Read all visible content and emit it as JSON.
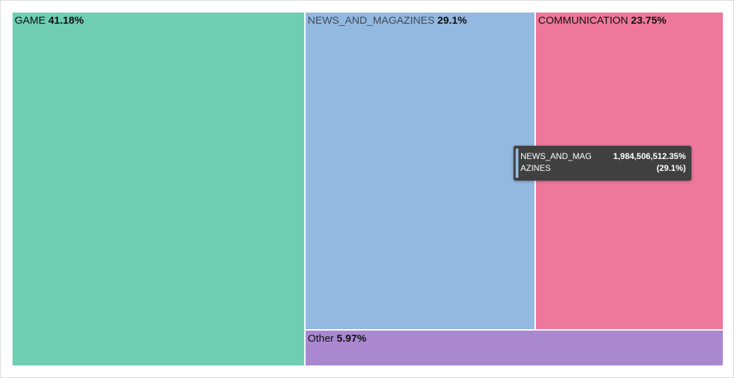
{
  "chart_data": {
    "type": "treemap",
    "items": [
      {
        "name": "GAME",
        "percent_label": "41.18%",
        "share": 41.18,
        "color": "#6fcdb2"
      },
      {
        "name": "NEWS_AND_MAGAZINES",
        "percent_label": "29.1%",
        "share": 29.1,
        "color": "#94b9e1"
      },
      {
        "name": "COMMUNICATION",
        "percent_label": "23.75%",
        "share": 23.75,
        "color": "#ee789b"
      },
      {
        "name": "Other",
        "percent_label": "5.97%",
        "share": 5.97,
        "color": "#aa88d0"
      }
    ]
  },
  "tooltip": {
    "name": "NEWS_AND_MAGAZINES",
    "value": "1,984,506,512.35%",
    "percent": "(29.1%)",
    "color": "#94b9e1"
  }
}
